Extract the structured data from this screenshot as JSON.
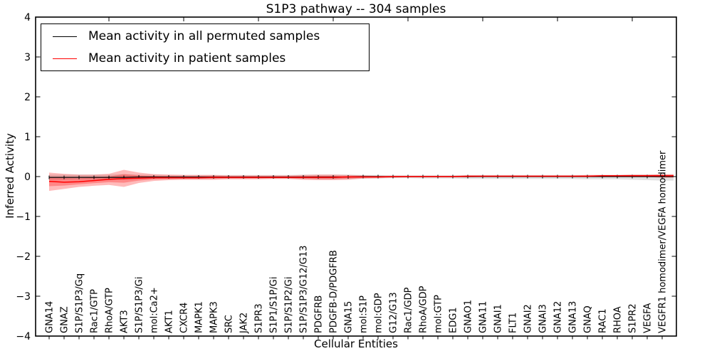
{
  "title": "S1P3 pathway -- 304 samples",
  "legend": {
    "items": [
      {
        "label": "Mean activity in all permuted samples",
        "color": "#000000"
      },
      {
        "label": "Mean activity in patient samples",
        "color": "#ff0000"
      }
    ]
  },
  "chart_data": {
    "type": "line",
    "title": "S1P3 pathway -- 304 samples",
    "xlabel": "Cellular Entities",
    "ylabel": "Inferred Activity",
    "ylim": [
      -4,
      4
    ],
    "yticks": [
      4,
      3,
      2,
      1,
      0,
      -1,
      -2,
      -3,
      -4
    ],
    "x_major_ticks_top": [
      5,
      10,
      15,
      20,
      25,
      30,
      35,
      40
    ],
    "grid": false,
    "legend_position": "upper-left",
    "categories": [
      "GNA14",
      "GNAZ",
      "S1P/S1P3/Gq",
      "Rac1/GTP",
      "RhoA/GTP",
      "AKT3",
      "S1P/S1P3/Gi",
      "mol:Ca2+",
      "AKT1",
      "CXCR4",
      "MAPK1",
      "MAPK3",
      "SRC",
      "JAK2",
      "S1PR3",
      "S1P1/S1P/Gi",
      "S1P/S1P2/Gi",
      "S1P/S1P3/G12/G13",
      "PDGFRB",
      "PDGFB-D/PDGFRB",
      "GNA15",
      "mol:S1P",
      "mol:GDP",
      "G12/G13",
      "Rac1/GDP",
      "RhoA/GDP",
      "mol:GTP",
      "EDG1",
      "GNAO1",
      "GNA11",
      "GNAI1",
      "FLT1",
      "GNAI2",
      "GNAI3",
      "GNA12",
      "GNA13",
      "GNAQ",
      "RAC1",
      "RHOA",
      "S1PR2",
      "VEGFA",
      "VEGFR1 homodimer/VEGFA homodimer"
    ],
    "series": [
      {
        "name": "Mean activity in all permuted samples",
        "color": "#000000",
        "marker": "|",
        "values": [
          -0.02,
          -0.02,
          -0.02,
          -0.02,
          -0.02,
          -0.02,
          -0.01,
          -0.01,
          -0.01,
          -0.01,
          -0.01,
          -0.01,
          -0.01,
          -0.01,
          -0.01,
          -0.01,
          -0.01,
          -0.01,
          -0.01,
          -0.01,
          -0.01,
          0,
          0,
          0,
          0,
          0,
          0,
          0,
          0,
          0,
          0,
          0,
          0,
          0,
          0,
          0,
          0,
          0,
          0,
          0,
          0,
          0
        ]
      },
      {
        "name": "Mean activity in patient samples",
        "color": "#ff0000",
        "marker": "none",
        "values": [
          -0.12,
          -0.14,
          -0.13,
          -0.1,
          -0.07,
          -0.05,
          -0.04,
          -0.03,
          -0.03,
          -0.03,
          -0.03,
          -0.02,
          -0.02,
          -0.02,
          -0.02,
          -0.02,
          -0.02,
          -0.02,
          -0.02,
          -0.02,
          -0.01,
          -0.01,
          -0.01,
          0,
          0,
          0,
          0,
          0,
          0.01,
          0.01,
          0.01,
          0.01,
          0.01,
          0.01,
          0.01,
          0.01,
          0.01,
          0.02,
          0.02,
          0.02,
          0.02,
          0.02
        ]
      }
    ],
    "bands": [
      {
        "name": "permuted-samples-range",
        "color": "#000000",
        "opacity": 0.12,
        "upper": [
          0.05,
          0.05,
          0.05,
          0.05,
          0.05,
          0.06,
          0.05,
          0.05,
          0.04,
          0.04,
          0.04,
          0.04,
          0.04,
          0.04,
          0.04,
          0.04,
          0.04,
          0.05,
          0.05,
          0.05,
          0.05,
          0.04,
          0.04,
          0.03,
          0.03,
          0.03,
          0.03,
          0.03,
          0.04,
          0.04,
          0.04,
          0.04,
          0.04,
          0.04,
          0.04,
          0.04,
          0.04,
          0.04,
          0.04,
          0.05,
          0.05,
          0.05
        ],
        "lower": [
          -0.08,
          -0.08,
          -0.07,
          -0.07,
          -0.07,
          -0.08,
          -0.07,
          -0.06,
          -0.06,
          -0.06,
          -0.06,
          -0.06,
          -0.05,
          -0.05,
          -0.05,
          -0.05,
          -0.05,
          -0.06,
          -0.07,
          -0.07,
          -0.06,
          -0.05,
          -0.05,
          -0.04,
          -0.04,
          -0.05,
          -0.05,
          -0.05,
          -0.06,
          -0.06,
          -0.06,
          -0.06,
          -0.06,
          -0.06,
          -0.06,
          -0.06,
          -0.07,
          -0.07,
          -0.07,
          -0.08,
          -0.09,
          -0.1
        ]
      },
      {
        "name": "patient-samples-range",
        "color": "#ff0000",
        "opacity": 0.27,
        "upper": [
          0.1,
          0.07,
          0.05,
          0.05,
          0.07,
          0.17,
          0.1,
          0.06,
          0.05,
          0.04,
          0.04,
          0.04,
          0.03,
          0.03,
          0.03,
          0.03,
          0.03,
          0.04,
          0.05,
          0.05,
          0.04,
          0.03,
          0.02,
          0.02,
          0.02,
          0.02,
          0.02,
          0.02,
          0.03,
          0.03,
          0.03,
          0.03,
          0.03,
          0.03,
          0.03,
          0.03,
          0.04,
          0.04,
          0.04,
          0.05,
          0.05,
          0.06
        ],
        "lower": [
          -0.36,
          -0.31,
          -0.26,
          -0.23,
          -0.21,
          -0.26,
          -0.16,
          -0.11,
          -0.09,
          -0.08,
          -0.08,
          -0.08,
          -0.07,
          -0.07,
          -0.07,
          -0.06,
          -0.06,
          -0.08,
          -0.09,
          -0.09,
          -0.08,
          -0.05,
          -0.04,
          -0.03,
          -0.02,
          -0.02,
          -0.02,
          -0.02,
          -0.02,
          -0.01,
          -0.01,
          -0.01,
          -0.01,
          -0.01,
          -0.01,
          -0.01,
          -0.01,
          -0.01,
          0,
          0,
          -0.01,
          -0.03
        ]
      }
    ]
  }
}
